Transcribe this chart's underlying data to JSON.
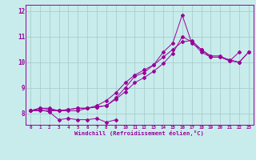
{
  "xlabel": "Windchill (Refroidissement éolien,°C)",
  "bg_color": "#c8ecec",
  "line_color": "#990099",
  "grid_color": "#aacccc",
  "xlim": [
    -0.5,
    23.5
  ],
  "ylim": [
    7.55,
    12.25
  ],
  "xticks": [
    0,
    1,
    2,
    3,
    4,
    5,
    6,
    7,
    8,
    9,
    10,
    11,
    12,
    13,
    14,
    15,
    16,
    17,
    18,
    19,
    20,
    21,
    22,
    23
  ],
  "yticks": [
    8,
    9,
    10,
    11,
    12
  ],
  "series": [
    [
      8.1,
      8.2,
      8.15,
      8.1,
      8.15,
      8.2,
      8.2,
      8.25,
      8.3,
      8.6,
      9.0,
      9.45,
      9.6,
      9.9,
      10.4,
      10.75,
      11.85,
      10.75,
      10.5,
      10.25,
      10.25,
      10.05,
      10.4,
      null
    ],
    [
      8.1,
      8.2,
      8.2,
      8.1,
      8.15,
      8.2,
      8.2,
      8.25,
      8.3,
      8.55,
      8.85,
      9.2,
      9.4,
      9.65,
      9.95,
      10.35,
      11.0,
      10.8,
      10.4,
      10.2,
      10.2,
      10.1,
      10.0,
      10.4
    ],
    [
      8.1,
      8.15,
      8.05,
      7.75,
      7.8,
      7.75,
      7.75,
      7.8,
      7.65,
      7.75,
      null,
      null,
      null,
      null,
      null,
      null,
      null,
      null,
      null,
      null,
      null,
      null,
      null,
      null
    ],
    [
      8.1,
      8.1,
      8.1,
      8.1,
      8.1,
      8.1,
      8.2,
      8.3,
      8.5,
      8.8,
      9.2,
      9.5,
      9.7,
      9.9,
      10.2,
      10.5,
      10.8,
      10.85,
      10.5,
      10.2,
      10.2,
      10.05,
      10.0,
      10.4
    ]
  ]
}
